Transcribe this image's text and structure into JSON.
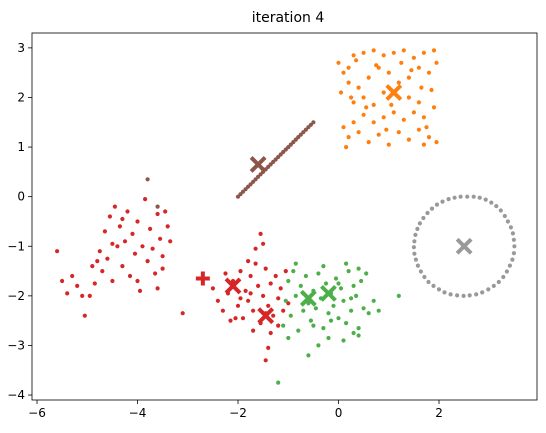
{
  "chart_data": {
    "type": "scatter",
    "title": "iteration 4",
    "xlabel": "",
    "ylabel": "",
    "xlim": [
      -6.1,
      3.95
    ],
    "ylim": [
      -4.1,
      3.3
    ],
    "xticks": [
      -6,
      -4,
      -2,
      0,
      2
    ],
    "yticks": [
      -4,
      -3,
      -2,
      -1,
      0,
      1,
      2,
      3
    ],
    "xtick_labels": [
      "−6",
      "−4",
      "−2",
      "0",
      "2"
    ],
    "ytick_labels": [
      "−4",
      "−3",
      "−2",
      "−1",
      "0",
      "1",
      "2",
      "3"
    ],
    "grid": false,
    "legend": "none",
    "series": [
      {
        "color": "#ff7f0e",
        "marker": "dot",
        "points": [
          [
            0.0,
            2.7
          ],
          [
            0.1,
            2.5
          ],
          [
            0.2,
            2.6
          ],
          [
            0.3,
            2.85
          ],
          [
            0.5,
            2.9
          ],
          [
            0.7,
            2.95
          ],
          [
            0.9,
            2.85
          ],
          [
            1.1,
            2.9
          ],
          [
            1.3,
            2.95
          ],
          [
            1.5,
            2.8
          ],
          [
            1.7,
            2.9
          ],
          [
            1.9,
            2.95
          ],
          [
            1.95,
            2.7
          ],
          [
            1.8,
            2.5
          ],
          [
            1.6,
            2.6
          ],
          [
            1.4,
            2.4
          ],
          [
            1.2,
            2.3
          ],
          [
            1.0,
            2.5
          ],
          [
            0.8,
            2.6
          ],
          [
            0.6,
            2.4
          ],
          [
            0.4,
            2.2
          ],
          [
            0.2,
            2.3
          ],
          [
            0.05,
            2.1
          ],
          [
            0.3,
            1.9
          ],
          [
            0.5,
            2.0
          ],
          [
            0.7,
            1.85
          ],
          [
            0.9,
            2.1
          ],
          [
            1.4,
            2.0
          ],
          [
            1.6,
            1.9
          ],
          [
            1.85,
            2.15
          ],
          [
            1.9,
            1.8
          ],
          [
            1.7,
            1.6
          ],
          [
            1.5,
            1.7
          ],
          [
            1.3,
            1.55
          ],
          [
            1.1,
            1.7
          ],
          [
            0.9,
            1.6
          ],
          [
            0.7,
            1.5
          ],
          [
            0.5,
            1.65
          ],
          [
            0.3,
            1.5
          ],
          [
            0.1,
            1.4
          ],
          [
            0.2,
            1.2
          ],
          [
            0.4,
            1.3
          ],
          [
            0.6,
            1.1
          ],
          [
            0.8,
            1.25
          ],
          [
            1.0,
            1.05
          ],
          [
            1.2,
            1.3
          ],
          [
            1.4,
            1.15
          ],
          [
            1.6,
            1.35
          ],
          [
            1.8,
            1.2
          ],
          [
            1.95,
            1.1
          ],
          [
            0.15,
            1.0
          ],
          [
            1.7,
            1.05
          ],
          [
            0.35,
            2.75
          ],
          [
            0.75,
            2.65
          ],
          [
            1.25,
            2.7
          ],
          [
            1.65,
            2.2
          ],
          [
            0.55,
            1.8
          ],
          [
            1.75,
            1.4
          ],
          [
            0.25,
            2.0
          ],
          [
            1.05,
            1.85
          ],
          [
            0.95,
            1.35
          ],
          [
            1.45,
            2.55
          ]
        ]
      },
      {
        "color": "#8c564b",
        "marker": "dot",
        "points": [
          [
            -2.0,
            0.0
          ],
          [
            -1.9,
            0.1
          ],
          [
            -1.8,
            0.2
          ],
          [
            -1.7,
            0.3
          ],
          [
            -1.6,
            0.4
          ],
          [
            -1.5,
            0.5
          ],
          [
            -1.4,
            0.6
          ],
          [
            -1.3,
            0.7
          ],
          [
            -1.2,
            0.8
          ],
          [
            -1.1,
            0.9
          ],
          [
            -1.0,
            1.0
          ],
          [
            -0.9,
            1.1
          ],
          [
            -0.8,
            1.2
          ],
          [
            -0.7,
            1.3
          ],
          [
            -0.6,
            1.4
          ],
          [
            -0.5,
            1.5
          ],
          [
            -1.95,
            0.05
          ],
          [
            -1.85,
            0.15
          ],
          [
            -1.75,
            0.25
          ],
          [
            -1.65,
            0.35
          ],
          [
            -1.55,
            0.45
          ],
          [
            -1.45,
            0.55
          ],
          [
            -1.35,
            0.65
          ],
          [
            -1.25,
            0.75
          ],
          [
            -1.15,
            0.85
          ],
          [
            -1.05,
            0.95
          ],
          [
            -0.95,
            1.05
          ],
          [
            -0.85,
            1.15
          ],
          [
            -0.75,
            1.25
          ],
          [
            -0.65,
            1.35
          ],
          [
            -0.55,
            1.45
          ],
          [
            -3.8,
            0.35
          ],
          [
            -3.6,
            -0.2
          ]
        ]
      },
      {
        "color": "#d62728",
        "marker": "dot",
        "points": [
          [
            -5.6,
            -1.1
          ],
          [
            -5.5,
            -1.7
          ],
          [
            -5.4,
            -1.95
          ],
          [
            -5.3,
            -1.6
          ],
          [
            -5.2,
            -1.8
          ],
          [
            -5.1,
            -2.0
          ],
          [
            -5.05,
            -2.4
          ],
          [
            -4.95,
            -2.0
          ],
          [
            -4.9,
            -1.4
          ],
          [
            -4.85,
            -1.75
          ],
          [
            -4.8,
            -1.3
          ],
          [
            -4.75,
            -1.1
          ],
          [
            -4.7,
            -1.5
          ],
          [
            -4.65,
            -0.7
          ],
          [
            -4.6,
            -1.25
          ],
          [
            -4.55,
            -0.4
          ],
          [
            -4.5,
            -0.95
          ],
          [
            -4.45,
            -0.2
          ],
          [
            -4.4,
            -1.0
          ],
          [
            -4.35,
            -0.6
          ],
          [
            -4.3,
            -1.4
          ],
          [
            -4.25,
            -0.9
          ],
          [
            -4.2,
            -0.3
          ],
          [
            -4.15,
            -1.6
          ],
          [
            -4.1,
            -0.75
          ],
          [
            -4.05,
            -1.15
          ],
          [
            -4.0,
            -0.5
          ],
          [
            -3.95,
            -1.9
          ],
          [
            -3.9,
            -1.0
          ],
          [
            -3.85,
            -0.05
          ],
          [
            -3.8,
            -1.3
          ],
          [
            -3.75,
            -0.65
          ],
          [
            -3.7,
            -1.05
          ],
          [
            -3.65,
            -1.55
          ],
          [
            -3.6,
            -0.35
          ],
          [
            -3.55,
            -0.85
          ],
          [
            -3.5,
            -1.2
          ],
          [
            -3.45,
            -0.3
          ],
          [
            -3.4,
            -0.6
          ],
          [
            -3.35,
            -0.9
          ],
          [
            -3.6,
            -1.85
          ],
          [
            -3.5,
            -1.45
          ],
          [
            -4.5,
            -1.7
          ],
          [
            -4.3,
            -0.45
          ],
          [
            -4.0,
            -1.7
          ],
          [
            -3.1,
            -2.35
          ],
          [
            -2.5,
            -1.85
          ],
          [
            -2.4,
            -2.1
          ],
          [
            -2.3,
            -2.3
          ],
          [
            -2.2,
            -1.95
          ],
          [
            -2.15,
            -2.5
          ],
          [
            -2.1,
            -1.7
          ],
          [
            -2.0,
            -2.2
          ],
          [
            -1.95,
            -1.5
          ],
          [
            -1.9,
            -2.45
          ],
          [
            -1.85,
            -1.9
          ],
          [
            -1.8,
            -2.1
          ],
          [
            -1.75,
            -1.6
          ],
          [
            -1.7,
            -2.3
          ],
          [
            -1.65,
            -1.35
          ],
          [
            -1.6,
            -1.8
          ],
          [
            -1.55,
            -2.55
          ],
          [
            -1.5,
            -2.0
          ],
          [
            -1.45,
            -1.45
          ],
          [
            -1.4,
            -2.2
          ],
          [
            -1.35,
            -1.75
          ],
          [
            -1.3,
            -2.4
          ],
          [
            -1.25,
            -1.6
          ],
          [
            -1.2,
            -2.05
          ],
          [
            -1.15,
            -1.85
          ],
          [
            -1.1,
            -2.3
          ],
          [
            -1.05,
            -1.5
          ],
          [
            -1.0,
            -2.15
          ],
          [
            -1.55,
            -0.75
          ],
          [
            -1.5,
            -0.95
          ],
          [
            -1.45,
            -3.3
          ],
          [
            -1.35,
            -2.75
          ],
          [
            -1.7,
            -2.7
          ],
          [
            -2.25,
            -1.55
          ],
          [
            -1.8,
            -1.3
          ],
          [
            -1.4,
            -3.05
          ],
          [
            -1.2,
            -2.6
          ],
          [
            -1.65,
            -1.05
          ],
          [
            -2.05,
            -2.45
          ],
          [
            -1.95,
            -2.05
          ],
          [
            -1.75,
            -1.95
          ],
          [
            -1.45,
            -2.35
          ]
        ]
      },
      {
        "color": "#4daf4a",
        "marker": "dot",
        "points": [
          [
            -1.2,
            -3.75
          ],
          [
            -1.1,
            -2.6
          ],
          [
            -1.05,
            -2.1
          ],
          [
            -1.0,
            -1.7
          ],
          [
            -0.95,
            -2.4
          ],
          [
            -0.9,
            -1.5
          ],
          [
            -0.85,
            -2.0
          ],
          [
            -0.8,
            -2.7
          ],
          [
            -0.75,
            -1.8
          ],
          [
            -0.7,
            -2.3
          ],
          [
            -0.65,
            -1.6
          ],
          [
            -0.6,
            -2.15
          ],
          [
            -0.55,
            -2.5
          ],
          [
            -0.5,
            -1.9
          ],
          [
            -0.45,
            -2.25
          ],
          [
            -0.4,
            -1.55
          ],
          [
            -0.35,
            -2.05
          ],
          [
            -0.3,
            -2.65
          ],
          [
            -0.25,
            -1.75
          ],
          [
            -0.2,
            -2.35
          ],
          [
            -0.15,
            -1.95
          ],
          [
            -0.1,
            -2.2
          ],
          [
            -0.05,
            -1.65
          ],
          [
            0.0,
            -2.45
          ],
          [
            0.05,
            -1.85
          ],
          [
            0.1,
            -2.1
          ],
          [
            0.15,
            -2.55
          ],
          [
            0.2,
            -1.5
          ],
          [
            0.25,
            -2.3
          ],
          [
            0.3,
            -1.8
          ],
          [
            0.35,
            -2.0
          ],
          [
            0.4,
            -2.65
          ],
          [
            0.45,
            -1.7
          ],
          [
            0.5,
            -2.25
          ],
          [
            0.55,
            -1.55
          ],
          [
            0.6,
            -2.35
          ],
          [
            -0.4,
            -3.0
          ],
          [
            -0.2,
            -2.85
          ],
          [
            0.1,
            -2.9
          ],
          [
            0.4,
            -2.8
          ],
          [
            1.2,
            -2.0
          ],
          [
            0.8,
            -2.3
          ],
          [
            0.7,
            -2.1
          ],
          [
            -1.0,
            -2.85
          ],
          [
            -0.6,
            -3.2
          ],
          [
            0.3,
            -2.75
          ],
          [
            -0.3,
            -1.4
          ],
          [
            0.15,
            -1.35
          ],
          [
            0.4,
            -1.45
          ],
          [
            -0.85,
            -1.35
          ],
          [
            0.0,
            -1.75
          ],
          [
            -0.5,
            -2.6
          ],
          [
            -0.15,
            -2.5
          ],
          [
            0.25,
            -2.05
          ],
          [
            -0.7,
            -1.95
          ]
        ]
      },
      {
        "color": "#999999",
        "marker": "dot",
        "points": [
          [
            3.5,
            -1.0
          ],
          [
            3.49,
            -0.87
          ],
          [
            3.47,
            -0.74
          ],
          [
            3.43,
            -0.62
          ],
          [
            3.37,
            -0.5
          ],
          [
            3.31,
            -0.39
          ],
          [
            3.23,
            -0.28
          ],
          [
            3.14,
            -0.19
          ],
          [
            3.04,
            -0.12
          ],
          [
            2.93,
            -0.06
          ],
          [
            2.81,
            -0.02
          ],
          [
            2.69,
            0.0
          ],
          [
            2.56,
            0.0
          ],
          [
            2.43,
            0.0
          ],
          [
            2.31,
            -0.02
          ],
          [
            2.19,
            -0.05
          ],
          [
            2.07,
            -0.1
          ],
          [
            1.96,
            -0.16
          ],
          [
            1.86,
            -0.24
          ],
          [
            1.77,
            -0.33
          ],
          [
            1.69,
            -0.43
          ],
          [
            1.62,
            -0.54
          ],
          [
            1.57,
            -0.65
          ],
          [
            1.53,
            -0.77
          ],
          [
            1.51,
            -0.9
          ],
          [
            1.5,
            -1.02
          ],
          [
            1.51,
            -1.15
          ],
          [
            1.54,
            -1.27
          ],
          [
            1.58,
            -1.39
          ],
          [
            1.64,
            -1.51
          ],
          [
            1.71,
            -1.62
          ],
          [
            1.79,
            -1.72
          ],
          [
            1.89,
            -1.8
          ],
          [
            2.0,
            -1.87
          ],
          [
            2.11,
            -1.93
          ],
          [
            2.23,
            -1.97
          ],
          [
            2.36,
            -1.99
          ],
          [
            2.49,
            -2.0
          ],
          [
            2.61,
            -1.99
          ],
          [
            2.74,
            -1.97
          ],
          [
            2.86,
            -1.93
          ],
          [
            2.98,
            -1.87
          ],
          [
            3.09,
            -1.8
          ],
          [
            3.19,
            -1.72
          ],
          [
            3.28,
            -1.62
          ],
          [
            3.35,
            -1.51
          ],
          [
            3.41,
            -1.39
          ],
          [
            3.46,
            -1.27
          ],
          [
            3.49,
            -1.14
          ]
        ]
      }
    ],
    "centroids": [
      {
        "color": "#ff7f0e",
        "marker": "x",
        "x": 1.1,
        "y": 2.1
      },
      {
        "color": "#8c564b",
        "marker": "x",
        "x": -1.6,
        "y": 0.65
      },
      {
        "color": "#999999",
        "marker": "x",
        "x": 2.5,
        "y": -1.0
      },
      {
        "color": "#d62728",
        "marker": "plus",
        "x": -2.7,
        "y": -1.65
      },
      {
        "color": "#d62728",
        "marker": "x",
        "x": -2.1,
        "y": -1.8
      },
      {
        "color": "#d62728",
        "marker": "x",
        "x": -1.45,
        "y": -2.4
      },
      {
        "color": "#4daf4a",
        "marker": "x",
        "x": -0.6,
        "y": -2.05
      },
      {
        "color": "#4daf4a",
        "marker": "x",
        "x": -0.2,
        "y": -1.95
      }
    ]
  }
}
